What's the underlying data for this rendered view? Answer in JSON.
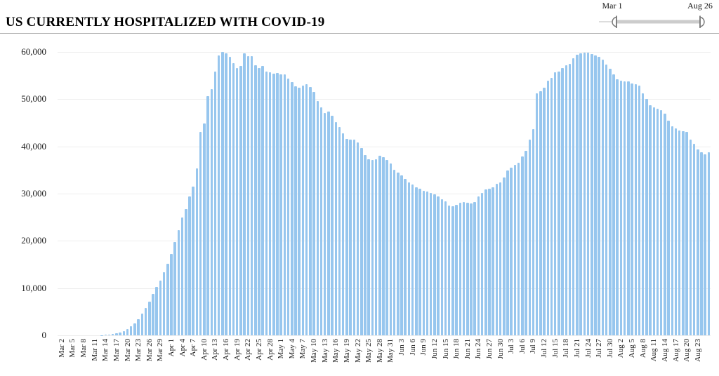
{
  "header": {
    "title": "US CURRENTLY HOSPITALIZED WITH COVID-19",
    "range_slider": {
      "start_label": "Mar 1",
      "end_label": "Aug 26"
    }
  },
  "chart_data": {
    "type": "bar",
    "title": "US CURRENTLY HOSPITALIZED WITH COVID-19",
    "ylabel": "",
    "xlabel": "",
    "ylim": [
      0,
      60000
    ],
    "grid": true,
    "legend": "none",
    "bar_color": "#97c6ee",
    "y_ticks": [
      "0",
      "10,000",
      "20,000",
      "30,000",
      "40,000",
      "50,000",
      "60,000"
    ],
    "x_tick_start_index": 1,
    "x_tick_step": 3,
    "x_tick_last_index": 175,
    "x": [
      "Mar 1",
      "Mar 2",
      "Mar 3",
      "Mar 4",
      "Mar 5",
      "Mar 6",
      "Mar 7",
      "Mar 8",
      "Mar 9",
      "Mar 10",
      "Mar 11",
      "Mar 12",
      "Mar 13",
      "Mar 14",
      "Mar 15",
      "Mar 16",
      "Mar 17",
      "Mar 18",
      "Mar 19",
      "Mar 20",
      "Mar 21",
      "Mar 22",
      "Mar 23",
      "Mar 24",
      "Mar 25",
      "Mar 26",
      "Mar 27",
      "Mar 28",
      "Mar 29",
      "Mar 30",
      "Mar 31",
      "Apr 1",
      "Apr 2",
      "Apr 3",
      "Apr 4",
      "Apr 5",
      "Apr 6",
      "Apr 7",
      "Apr 8",
      "Apr 9",
      "Apr 10",
      "Apr 11",
      "Apr 12",
      "Apr 13",
      "Apr 14",
      "Apr 15",
      "Apr 16",
      "Apr 17",
      "Apr 18",
      "Apr 19",
      "Apr 20",
      "Apr 21",
      "Apr 22",
      "Apr 23",
      "Apr 24",
      "Apr 25",
      "Apr 26",
      "Apr 27",
      "Apr 28",
      "Apr 29",
      "Apr 30",
      "May 1",
      "May 2",
      "May 3",
      "May 4",
      "May 5",
      "May 6",
      "May 7",
      "May 8",
      "May 9",
      "May 10",
      "May 11",
      "May 12",
      "May 13",
      "May 14",
      "May 15",
      "May 16",
      "May 17",
      "May 18",
      "May 19",
      "May 20",
      "May 21",
      "May 22",
      "May 23",
      "May 24",
      "May 25",
      "May 26",
      "May 27",
      "May 28",
      "May 29",
      "May 30",
      "May 31",
      "Jun 1",
      "Jun 2",
      "Jun 3",
      "Jun 4",
      "Jun 5",
      "Jun 6",
      "Jun 7",
      "Jun 8",
      "Jun 9",
      "Jun 10",
      "Jun 11",
      "Jun 12",
      "Jun 13",
      "Jun 14",
      "Jun 15",
      "Jun 16",
      "Jun 17",
      "Jun 18",
      "Jun 19",
      "Jun 20",
      "Jun 21",
      "Jun 22",
      "Jun 23",
      "Jun 24",
      "Jun 25",
      "Jun 26",
      "Jun 27",
      "Jun 28",
      "Jun 29",
      "Jun 30",
      "Jul 1",
      "Jul 2",
      "Jul 3",
      "Jul 4",
      "Jul 5",
      "Jul 6",
      "Jul 7",
      "Jul 8",
      "Jul 9",
      "Jul 10",
      "Jul 11",
      "Jul 12",
      "Jul 13",
      "Jul 14",
      "Jul 15",
      "Jul 16",
      "Jul 17",
      "Jul 18",
      "Jul 19",
      "Jul 20",
      "Jul 21",
      "Jul 22",
      "Jul 23",
      "Jul 24",
      "Jul 25",
      "Jul 26",
      "Jul 27",
      "Jul 28",
      "Jul 29",
      "Jul 30",
      "Jul 31",
      "Aug 1",
      "Aug 2",
      "Aug 3",
      "Aug 4",
      "Aug 5",
      "Aug 6",
      "Aug 7",
      "Aug 8",
      "Aug 9",
      "Aug 10",
      "Aug 11",
      "Aug 12",
      "Aug 13",
      "Aug 14",
      "Aug 15",
      "Aug 16",
      "Aug 17",
      "Aug 18",
      "Aug 19",
      "Aug 20",
      "Aug 21",
      "Aug 22",
      "Aug 23",
      "Aug 24",
      "Aug 25",
      "Aug 26"
    ],
    "values": [
      0,
      0,
      0,
      0,
      0,
      0,
      0,
      0,
      0,
      0,
      0,
      0,
      50,
      100,
      150,
      250,
      400,
      600,
      900,
      1300,
      1900,
      2500,
      3400,
      4600,
      5800,
      7200,
      8800,
      10200,
      11600,
      13400,
      15200,
      17200,
      19800,
      22300,
      25000,
      26800,
      29400,
      31500,
      35300,
      43000,
      44800,
      50600,
      52100,
      55900,
      59200,
      60000,
      59700,
      58900,
      57600,
      56600,
      57000,
      59700,
      59100,
      59100,
      57200,
      56600,
      57000,
      55900,
      55700,
      55400,
      55600,
      55300,
      55200,
      54400,
      53600,
      52700,
      52500,
      52800,
      53100,
      52600,
      51500,
      49600,
      48300,
      47100,
      47400,
      46500,
      45200,
      44100,
      42800,
      41600,
      41400,
      41500,
      40800,
      39600,
      38200,
      37300,
      37200,
      37300,
      38000,
      37700,
      37100,
      36400,
      35100,
      34400,
      33900,
      33100,
      32400,
      31900,
      31400,
      31000,
      30600,
      30400,
      30200,
      29900,
      29400,
      28800,
      28300,
      27500,
      27300,
      27700,
      28000,
      28200,
      28000,
      27900,
      28200,
      29400,
      30200,
      30900,
      31100,
      31400,
      32100,
      32400,
      33400,
      34900,
      35500,
      36100,
      36600,
      37800,
      39000,
      41500,
      43600,
      51300,
      51700,
      52500,
      53900,
      54500,
      55700,
      55900,
      56600,
      57200,
      57500,
      58600,
      59400,
      59700,
      59900,
      59900,
      59600,
      59200,
      58900,
      58300,
      57400,
      56400,
      55200,
      54200,
      53900,
      53800,
      53800,
      53300,
      53100,
      52900,
      51200,
      50000,
      48700,
      48200,
      48000,
      47700,
      47000,
      45500,
      44300,
      43800,
      43400,
      43200,
      43000,
      41500,
      40500,
      39300,
      38700,
      38300,
      38800
    ]
  }
}
